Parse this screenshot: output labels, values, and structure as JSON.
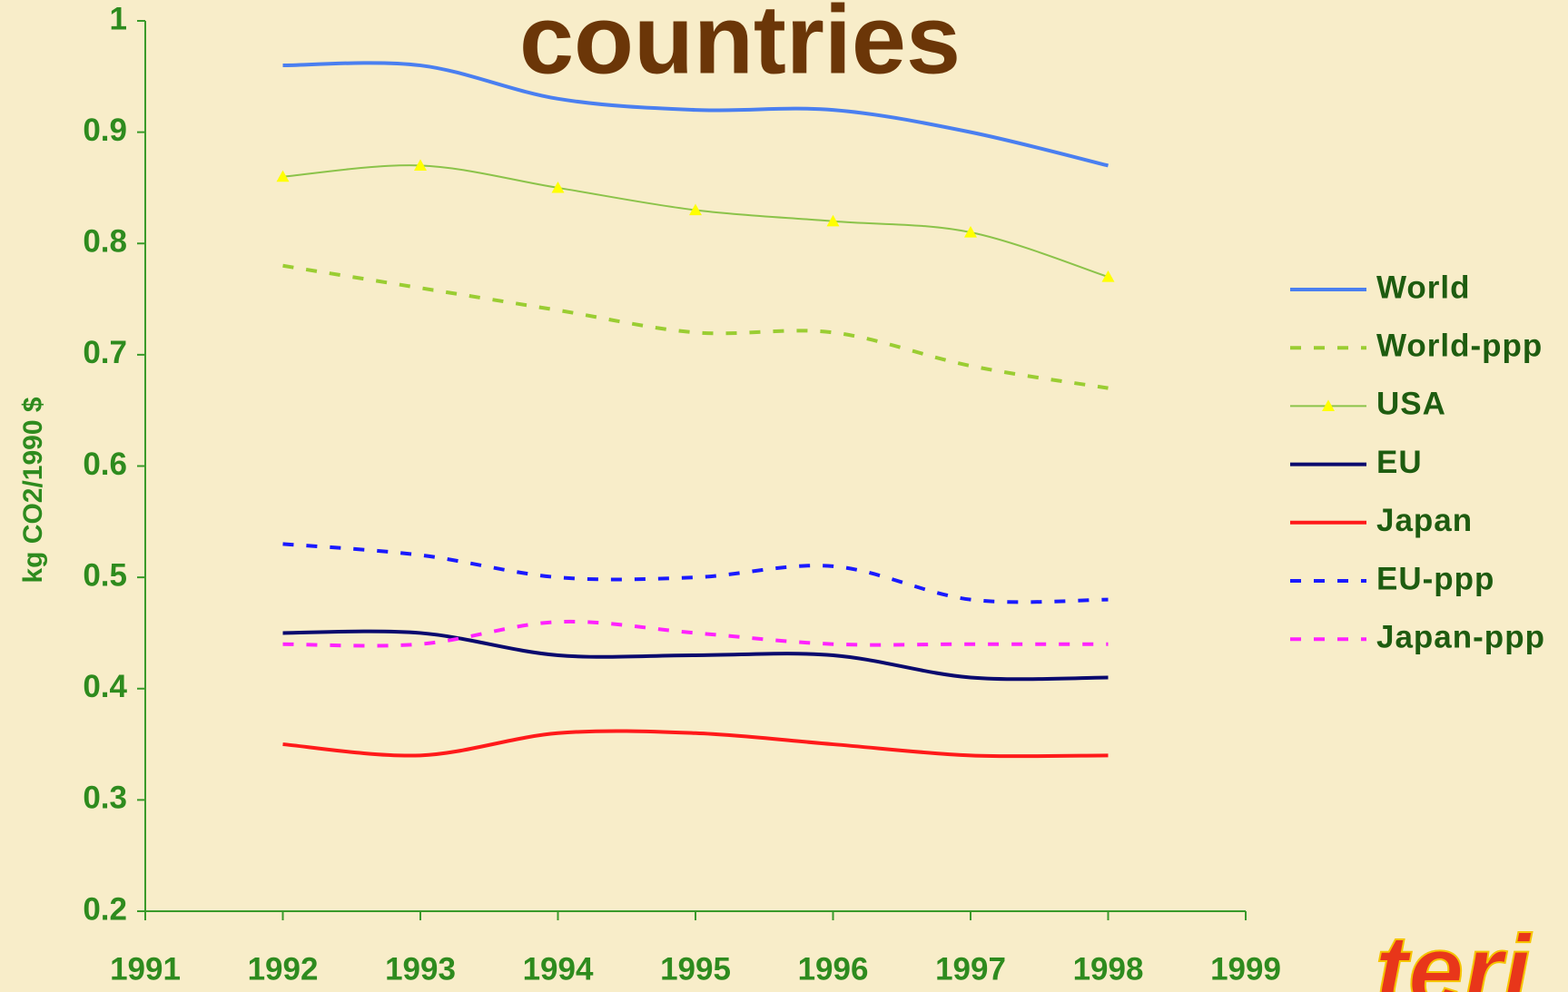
{
  "chart_data": {
    "type": "line",
    "title": "countries",
    "y_label": "kg CO2/1990 $",
    "logo": "teri",
    "x": [
      1992,
      1993,
      1994,
      1995,
      1996,
      1997,
      1998
    ],
    "xlim": [
      1991,
      1999
    ],
    "xticks": [
      1991,
      1992,
      1993,
      1994,
      1995,
      1996,
      1997,
      1998,
      1999
    ],
    "ylim": [
      0.2,
      1
    ],
    "yticks": [
      0.2,
      0.3,
      0.4,
      0.5,
      0.6,
      0.7,
      0.8,
      0.9,
      1
    ],
    "grid": false,
    "legend": "right",
    "series": [
      {
        "name": "World",
        "color": "#4a7ff0",
        "dash": false,
        "values": [
          0.96,
          0.96,
          0.93,
          0.92,
          0.92,
          0.9,
          0.87
        ]
      },
      {
        "name": "World-ppp",
        "color": "#9acd32",
        "dash": true,
        "values": [
          0.78,
          0.76,
          0.74,
          0.72,
          0.72,
          0.69,
          0.67
        ]
      },
      {
        "name": "USA",
        "color": "#8bc34a",
        "dash": false,
        "marker": "triangle",
        "marker_color": "#ffff00",
        "values": [
          0.86,
          0.87,
          0.85,
          0.83,
          0.82,
          0.81,
          0.77
        ]
      },
      {
        "name": "EU",
        "color": "#0a0a6e",
        "dash": false,
        "values": [
          0.45,
          0.45,
          0.43,
          0.43,
          0.43,
          0.41,
          0.41
        ]
      },
      {
        "name": "Japan",
        "color": "#ff1a1a",
        "dash": false,
        "values": [
          0.35,
          0.34,
          0.36,
          0.36,
          0.35,
          0.34,
          0.34
        ]
      },
      {
        "name": "EU-ppp",
        "color": "#1a1aff",
        "dash": true,
        "values": [
          0.53,
          0.52,
          0.5,
          0.5,
          0.51,
          0.48,
          0.48
        ]
      },
      {
        "name": "Japan-ppp",
        "color": "#ff22ff",
        "dash": true,
        "values": [
          0.44,
          0.44,
          0.46,
          0.45,
          0.44,
          0.44,
          0.44
        ]
      }
    ]
  }
}
